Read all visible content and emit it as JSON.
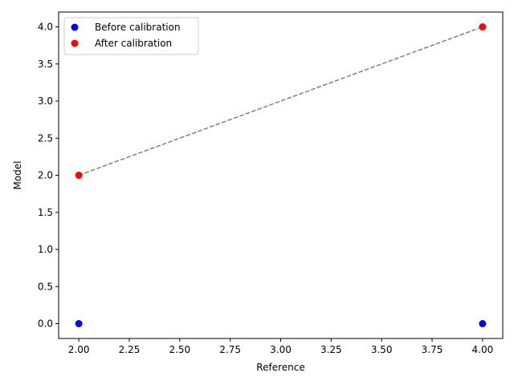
{
  "chart_data": {
    "type": "scatter",
    "title": "",
    "xlabel": "Reference",
    "ylabel": "Model",
    "xlim": [
      1.9,
      4.1
    ],
    "ylim": [
      -0.2,
      4.2
    ],
    "grid": false,
    "legend_position": "top-left",
    "x_ticks": [
      "2.00",
      "2.25",
      "2.50",
      "2.75",
      "3.00",
      "3.25",
      "3.50",
      "3.75",
      "4.00"
    ],
    "y_ticks": [
      "0.0",
      "0.5",
      "1.0",
      "1.5",
      "2.0",
      "2.5",
      "3.0",
      "3.5",
      "4.0"
    ],
    "series": [
      {
        "name": "Before calibration",
        "color": "#0000ff",
        "points": [
          [
            2.0,
            0.0
          ],
          [
            4.0,
            0.0
          ]
        ]
      },
      {
        "name": "After calibration",
        "color": "#ff0000",
        "points": [
          [
            2.0,
            2.0
          ],
          [
            4.0,
            4.0
          ]
        ]
      }
    ],
    "reference_line": {
      "points": [
        [
          2.0,
          2.0
        ],
        [
          4.0,
          4.0
        ]
      ],
      "color": "#808080",
      "style": "dashed"
    }
  }
}
